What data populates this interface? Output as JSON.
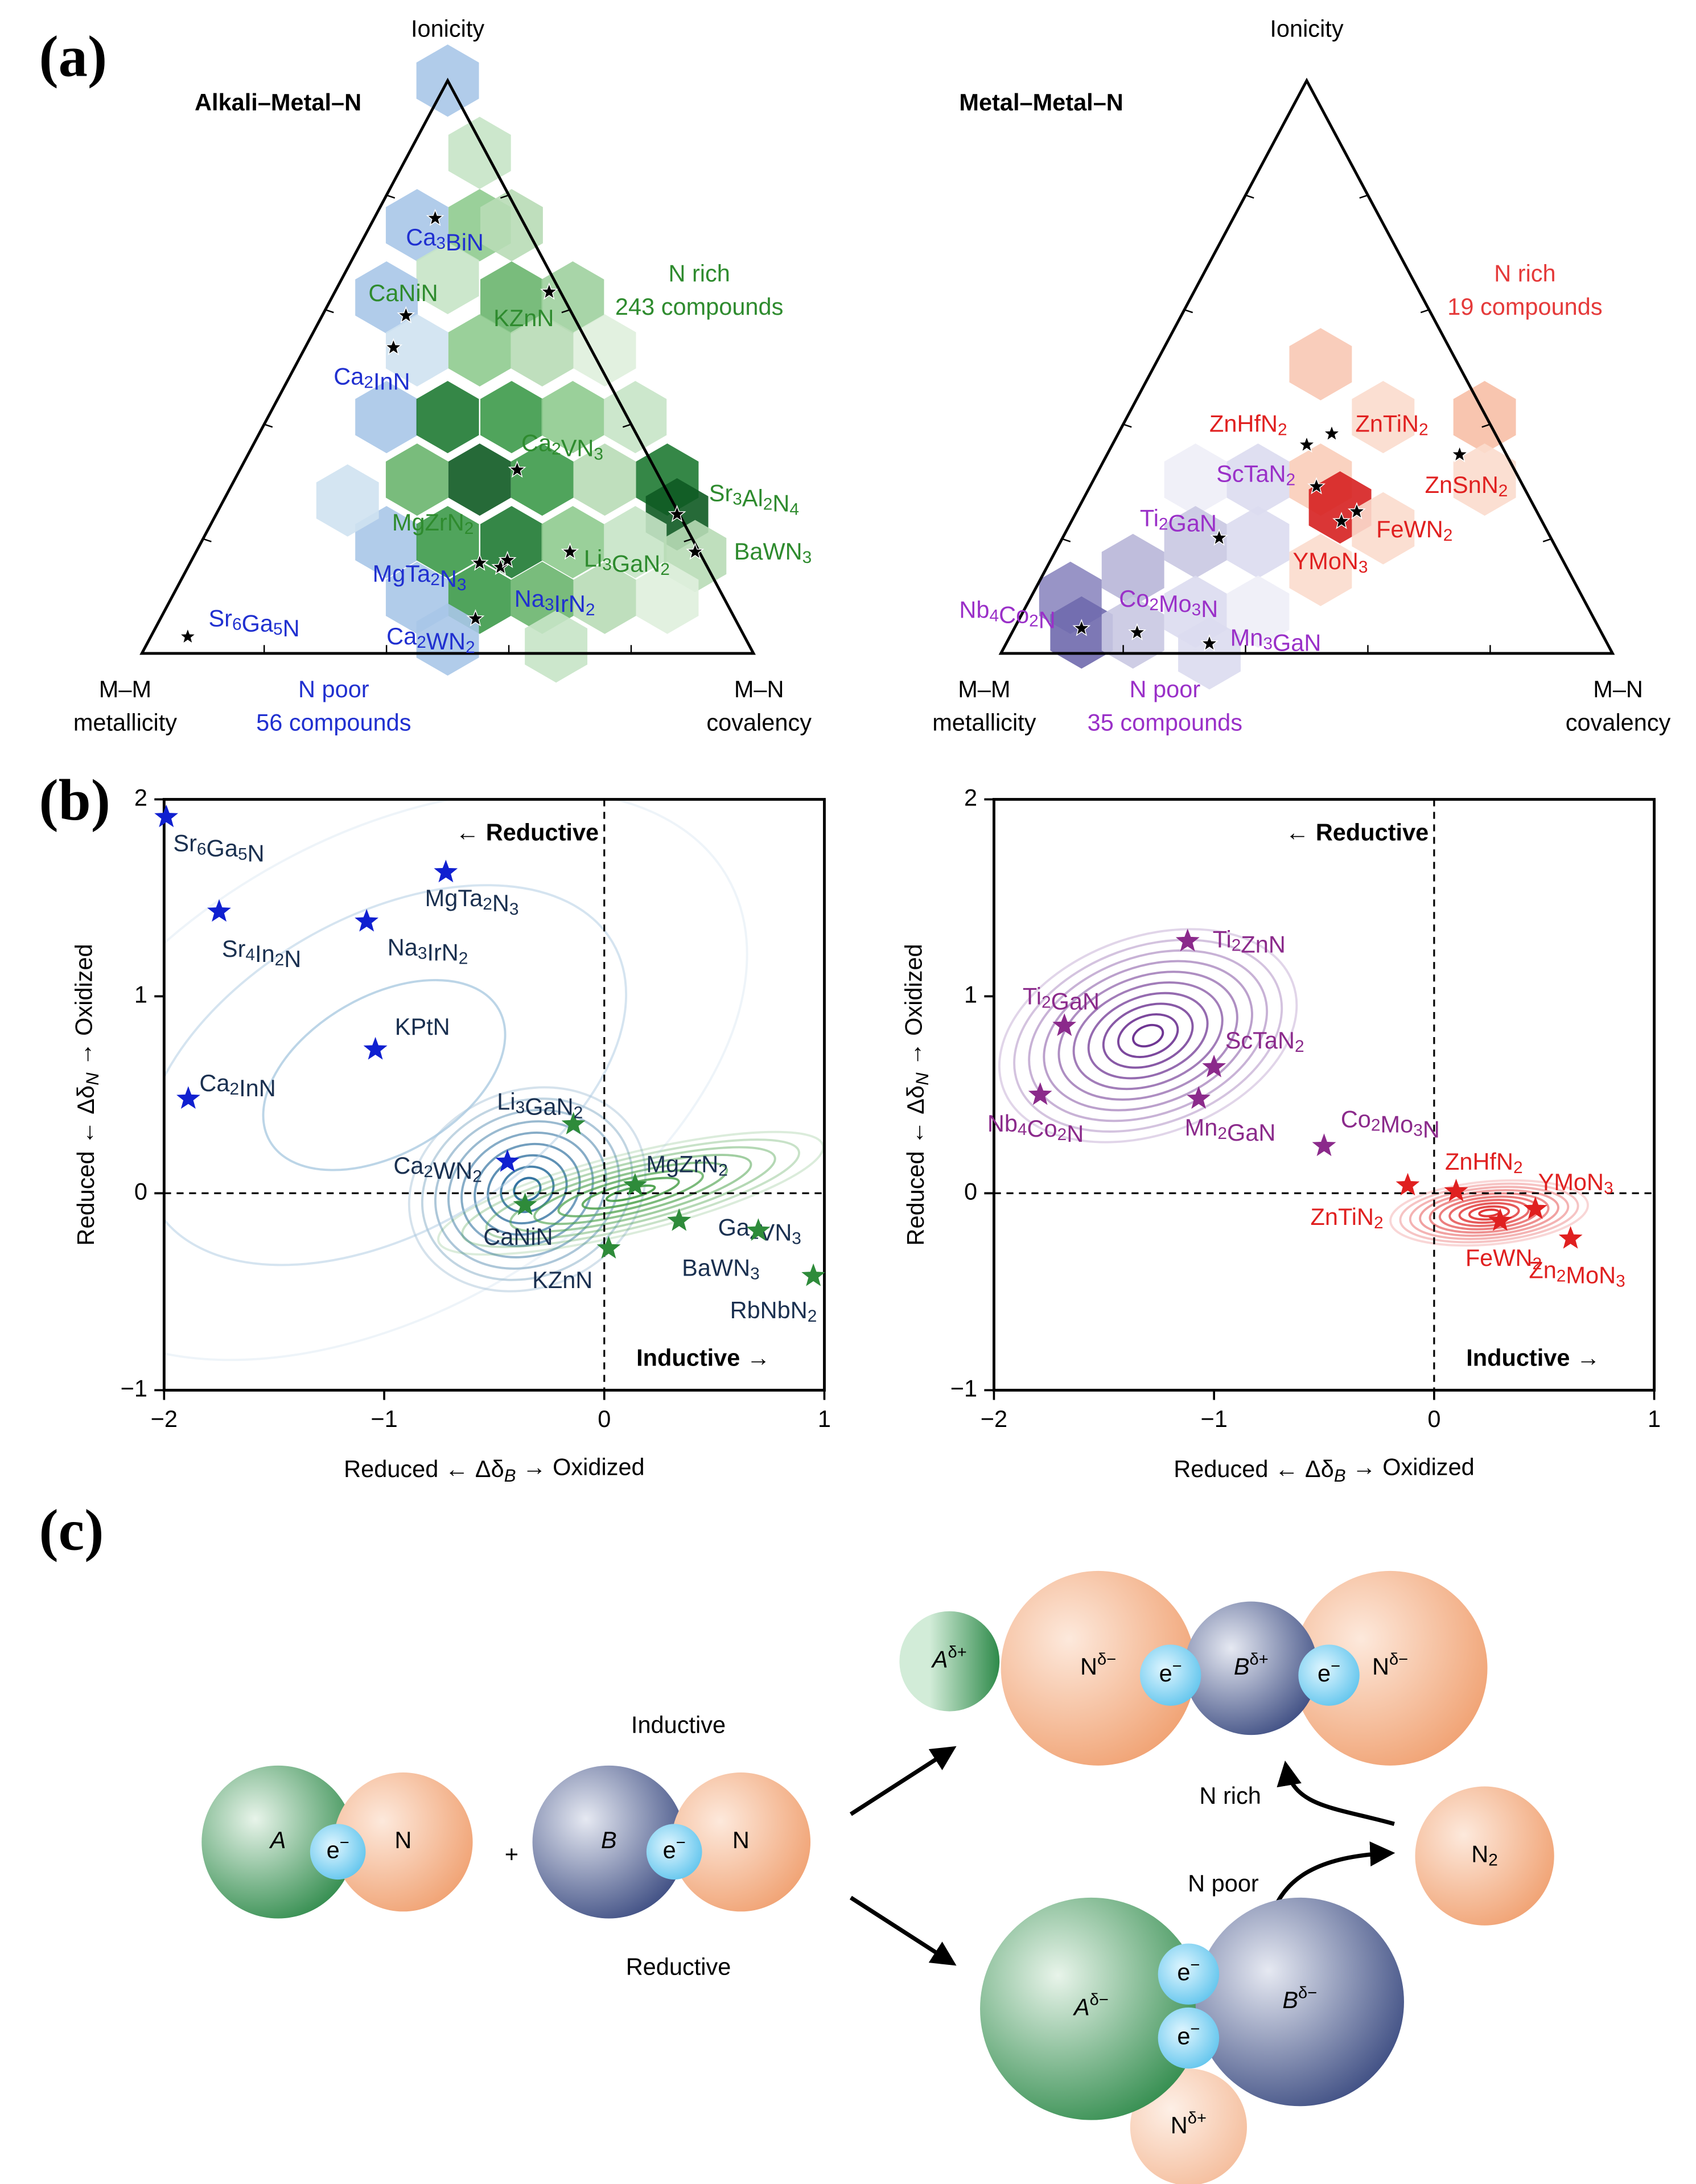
{
  "panel_labels": [
    "(a)",
    "(b)",
    "(c)"
  ],
  "ternary": [
    {
      "title": "Alkali–Metal–N",
      "top": "Ionicity",
      "left": [
        "M–M",
        "metallicity"
      ],
      "right": [
        "M–N",
        "covalency"
      ],
      "rich": [
        "N rich",
        "243 compounds"
      ],
      "poor": [
        "N poor",
        "56 compounds"
      ],
      "rich_color": "#2e8b2e",
      "poor_color": "#2030d0",
      "labels": [
        {
          "text": "Ca3BiN",
          "color": "#2030d0"
        },
        {
          "text": "KZnN",
          "color": "#2e8b2e"
        },
        {
          "text": "CaNiN",
          "color": "#2e8b2e"
        },
        {
          "text": "Ca2InN",
          "color": "#2030d0"
        },
        {
          "text": "Ca2VN3",
          "color": "#2e8b2e"
        },
        {
          "text": "Sr3Al2N4",
          "color": "#2e8b2e"
        },
        {
          "text": "BaWN3",
          "color": "#2e8b2e"
        },
        {
          "text": "MgZrN2",
          "color": "#2e8b2e"
        },
        {
          "text": "Li3GaN2",
          "color": "#2e8b2e"
        },
        {
          "text": "MgTa2N3",
          "color": "#2030d0"
        },
        {
          "text": "Na3IrN2",
          "color": "#2030d0"
        },
        {
          "text": "Ca2WN2",
          "color": "#2030d0"
        },
        {
          "text": "Sr6Ga5N",
          "color": "#2030d0"
        }
      ]
    },
    {
      "title": "Metal–Metal–N",
      "top": "Ionicity",
      "left": [
        "M–M",
        "metallicity"
      ],
      "right": [
        "M–N",
        "covalency"
      ],
      "rich": [
        "N rich",
        "19 compounds"
      ],
      "poor": [
        "N poor",
        "35 compounds"
      ],
      "rich_color": "#e53a3a",
      "poor_color": "#9a30c8",
      "labels": [
        {
          "text": "ZnHfN2",
          "color": "#e02020"
        },
        {
          "text": "ZnTiN2",
          "color": "#e02020"
        },
        {
          "text": "ZnSnN2",
          "color": "#e02020"
        },
        {
          "text": "ScTaN2",
          "color": "#9a30c8"
        },
        {
          "text": "FeWN2",
          "color": "#e02020"
        },
        {
          "text": "YMoN3",
          "color": "#e02020"
        },
        {
          "text": "Ti2GaN",
          "color": "#9a30c8"
        },
        {
          "text": "Co2Mo3N",
          "color": "#9a30c8"
        },
        {
          "text": "Nb4Co2N",
          "color": "#9a30c8"
        },
        {
          "text": "Mn3GaN",
          "color": "#9a30c8"
        }
      ]
    }
  ],
  "chart_data": [
    {
      "type": "scatter",
      "xlabel": [
        "Reduced ← Δδ",
        "B",
        " → Oxidized"
      ],
      "ylabel": [
        "Reduced ← Δδ",
        "N",
        " → Oxidized"
      ],
      "xlim": [
        -2,
        1
      ],
      "ylim": [
        -1,
        2
      ],
      "xticks": [
        {
          "value": -2,
          "label": "−2"
        },
        {
          "value": -1,
          "label": "−1"
        },
        0,
        1
      ],
      "yticks": [
        {
          "value": -1,
          "label": "−1"
        },
        0,
        1,
        2
      ],
      "hlines": [
        0
      ],
      "vlines": [
        0
      ],
      "annotations": [
        "← Reductive",
        "Inductive →"
      ],
      "points": [
        {
          "label": "Sr6Ga5N",
          "x": -1.99,
          "y": 1.91,
          "color": "#1020d0"
        },
        {
          "label": "Sr4In2N",
          "x": -1.75,
          "y": 1.43,
          "color": "#1020d0"
        },
        {
          "label": "MgTa2N3",
          "x": -0.72,
          "y": 1.63,
          "color": "#1020d0"
        },
        {
          "label": "Na3IrN2",
          "x": -1.08,
          "y": 1.38,
          "color": "#1020d0"
        },
        {
          "label": "KPtN",
          "x": -1.04,
          "y": 0.73,
          "color": "#1020d0"
        },
        {
          "label": "Ca2InN",
          "x": -1.89,
          "y": 0.48,
          "color": "#1020d0"
        },
        {
          "label": "Li3GaN2",
          "x": -0.14,
          "y": 0.35,
          "color": "#2e8b3a"
        },
        {
          "label": "Ca2WN2",
          "x": -0.44,
          "y": 0.16,
          "color": "#1020d0"
        },
        {
          "label": "CaNiN",
          "x": -0.36,
          "y": -0.06,
          "color": "#2e8b3a"
        },
        {
          "label": "MgZrN2",
          "x": 0.14,
          "y": 0.04,
          "color": "#2e8b3a"
        },
        {
          "label": "Ga2VN3",
          "x": 0.34,
          "y": -0.14,
          "color": "#2e8b3a"
        },
        {
          "label": "KZnN",
          "x": 0.02,
          "y": -0.28,
          "color": "#2e8b3a"
        },
        {
          "label": "BaWN3",
          "x": 0.7,
          "y": -0.19,
          "color": "#2e8b3a"
        },
        {
          "label": "RbNbN2",
          "x": 0.95,
          "y": -0.42,
          "color": "#2e8b3a"
        }
      ]
    },
    {
      "type": "scatter",
      "xlabel": [
        "Reduced ← Δδ",
        "B",
        " → Oxidized"
      ],
      "ylabel": [
        "Reduced ← Δδ",
        "N",
        " → Oxidized"
      ],
      "xlim": [
        -2,
        1
      ],
      "ylim": [
        -1,
        2
      ],
      "xticks": [
        {
          "value": -2,
          "label": "−2"
        },
        {
          "value": -1,
          "label": "−1"
        },
        0,
        1
      ],
      "yticks": [
        {
          "value": -1,
          "label": "−1"
        },
        0,
        1,
        2
      ],
      "hlines": [
        0
      ],
      "vlines": [
        0
      ],
      "annotations": [
        "← Reductive",
        "Inductive →"
      ],
      "points": [
        {
          "label": "Ti2ZnN",
          "x": -1.12,
          "y": 1.28,
          "color": "#8b2a8b"
        },
        {
          "label": "Ti2GaN",
          "x": -1.68,
          "y": 0.85,
          "color": "#8b2a8b"
        },
        {
          "label": "ScTaN2",
          "x": -1.0,
          "y": 0.64,
          "color": "#8b2a8b"
        },
        {
          "label": "Nb4Co2N",
          "x": -1.79,
          "y": 0.5,
          "color": "#8b2a8b"
        },
        {
          "label": "Mn2GaN",
          "x": -1.07,
          "y": 0.48,
          "color": "#8b2a8b"
        },
        {
          "label": "Co2Mo3N",
          "x": -0.5,
          "y": 0.24,
          "color": "#8b2a8b"
        },
        {
          "label": "ZnTiN2",
          "x": -0.12,
          "y": 0.04,
          "color": "#e02020"
        },
        {
          "label": "ZnHfN2",
          "x": 0.1,
          "y": 0.01,
          "color": "#e02020"
        },
        {
          "label": "FeWN2",
          "x": 0.3,
          "y": -0.14,
          "color": "#e02020"
        },
        {
          "label": "YMoN3",
          "x": 0.46,
          "y": -0.08,
          "color": "#e02020"
        },
        {
          "label": "Zn2MoN3",
          "x": 0.62,
          "y": -0.23,
          "color": "#e02020"
        }
      ]
    }
  ],
  "diagram": {
    "inductive": "Inductive",
    "reductive": "Reductive",
    "plus": "+",
    "n_rich": "N rich",
    "n_poor": "N poor",
    "n2": "N2",
    "left_a": {
      "base": "A"
    },
    "left_e": {
      "base": "e",
      "sup": "−"
    },
    "left_n": {
      "base": "N"
    },
    "left_b": {
      "base": "B"
    },
    "left_e2": {
      "base": "e",
      "sup": "−"
    },
    "left_n2": {
      "base": "N"
    },
    "top_a": {
      "base": "A",
      "sup": "δ+"
    },
    "top_n1": {
      "base": "N",
      "sup": "δ−"
    },
    "top_e1": {
      "base": "e",
      "sup": "−"
    },
    "top_b": {
      "base": "B",
      "sup": "δ+"
    },
    "top_e2": {
      "base": "e",
      "sup": "−"
    },
    "top_n2": {
      "base": "N",
      "sup": "δ−"
    },
    "bot_a": {
      "base": "A",
      "sup": "δ−"
    },
    "bot_b": {
      "base": "B",
      "sup": "δ−"
    },
    "bot_e1": {
      "base": "e",
      "sup": "−"
    },
    "bot_e2": {
      "base": "e",
      "sup": "−"
    },
    "bot_n": {
      "base": "N",
      "sup": "δ+"
    }
  }
}
